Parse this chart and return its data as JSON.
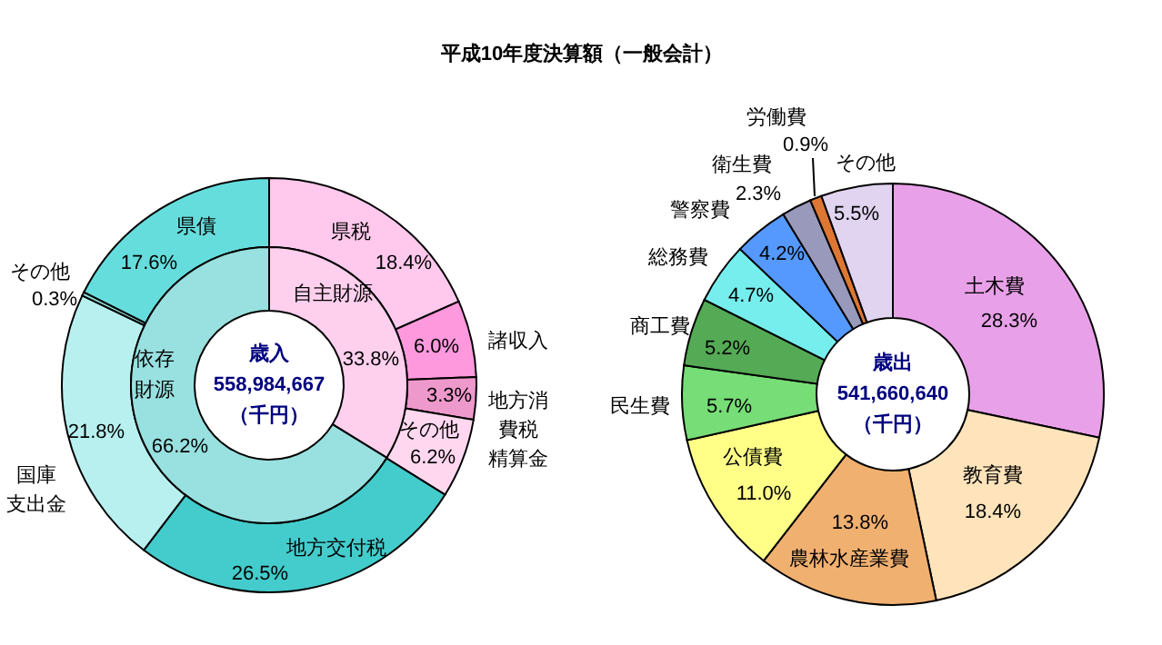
{
  "chart_data": [
    {
      "type": "donut",
      "title": "平成10年度決算額（一般会計）",
      "categories": [
        "県税",
        "諸収入",
        "地方消費税精算金",
        "その他",
        "地方交付税",
        "国庫支出金",
        "その他",
        "県債"
      ],
      "values": [
        18.4,
        6.0,
        3.3,
        6.2,
        26.5,
        21.8,
        0.3,
        17.6
      ],
      "value_labels": [
        "18.4%",
        "6.0%",
        "3.3%",
        "6.2%",
        "26.5%",
        "21.8%",
        "0.3%",
        "17.6%"
      ],
      "colors": [
        "#ffc8ec",
        "#ff99dd",
        "#ee99cc",
        "#ffd8f0",
        "#44cccc",
        "#b8f0f0",
        "#8fdada",
        "#66dddd"
      ]
    },
    {
      "type": "donut",
      "categories": [
        "自主財源",
        "依存財源"
      ],
      "values": [
        33.8,
        66.2
      ],
      "value_labels": [
        "33.8%",
        "66.2%"
      ],
      "colors": [
        "#ffd0ee",
        "#99e0e0"
      ],
      "annotations": [
        "歳入",
        "558,984,667",
        "（千円）"
      ]
    },
    {
      "type": "donut",
      "categories": [
        "土木費",
        "教育費",
        "農林水産業費",
        "公債費",
        "民生費",
        "商工費",
        "総務費",
        "警察費",
        "衛生費",
        "労働費",
        "その他"
      ],
      "values": [
        28.3,
        18.4,
        13.8,
        11.0,
        5.7,
        5.2,
        4.7,
        4.2,
        2.3,
        0.9,
        5.5
      ],
      "value_labels": [
        "28.3%",
        "18.4%",
        "13.8%",
        "11.0%",
        "5.7%",
        "5.2%",
        "4.7%",
        "4.2%",
        "2.3%",
        "0.9%",
        "5.5%"
      ],
      "colors": [
        "#e8a0e8",
        "#ffe4bb",
        "#f0b070",
        "#ffff88",
        "#77dd77",
        "#55aa55",
        "#77eeee",
        "#5599ff",
        "#9999bb",
        "#dd7733",
        "#e0d4f0"
      ],
      "annotations": [
        "歳出",
        "541,660,640",
        "（千円）"
      ]
    }
  ]
}
